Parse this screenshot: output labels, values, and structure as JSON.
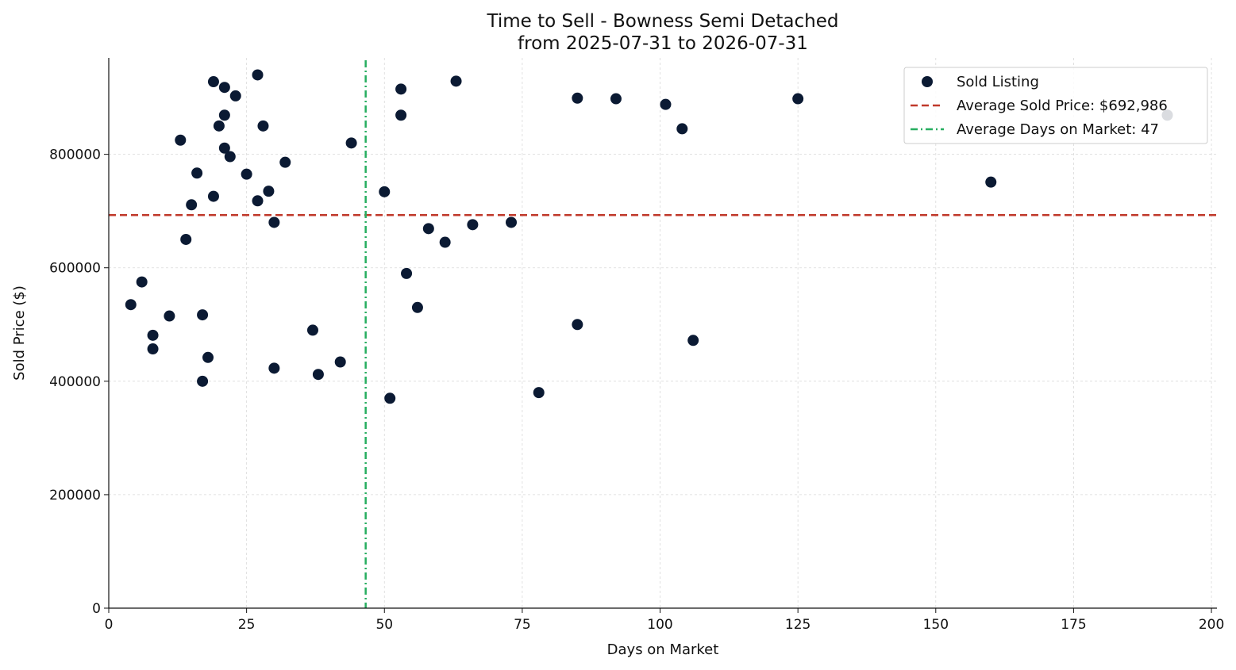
{
  "chart_data": {
    "type": "scatter",
    "title": "Time to Sell - Bowness Semi Detached",
    "subtitle": "from 2025-07-31 to 2026-07-31",
    "xlabel": "Days on Market",
    "ylabel": "Sold Price ($)",
    "xlim": [
      0,
      201
    ],
    "ylim": [
      0,
      970000
    ],
    "xticks": [
      0,
      25,
      50,
      75,
      100,
      125,
      150,
      175,
      200
    ],
    "yticks": [
      0,
      200000,
      400000,
      600000,
      800000
    ],
    "grid": true,
    "legend_position": "top-right",
    "colors": {
      "points": "#0b1a33",
      "avg_price_line": "#c0392b",
      "avg_days_line": "#27ae60",
      "grid": "#d9d9d9",
      "axis": "#111111"
    },
    "series": [
      {
        "name": "Sold Listing",
        "points": [
          [
            4,
            535000
          ],
          [
            6,
            575000
          ],
          [
            8,
            481000
          ],
          [
            8,
            457000
          ],
          [
            11,
            515000
          ],
          [
            13,
            825000
          ],
          [
            14,
            650000
          ],
          [
            15,
            711000
          ],
          [
            16,
            767000
          ],
          [
            17,
            517000
          ],
          [
            17,
            400000
          ],
          [
            18,
            442000
          ],
          [
            19,
            928000
          ],
          [
            19,
            726000
          ],
          [
            20,
            850000
          ],
          [
            21,
            918000
          ],
          [
            21,
            869000
          ],
          [
            21,
            811000
          ],
          [
            22,
            796000
          ],
          [
            23,
            903000
          ],
          [
            25,
            765000
          ],
          [
            27,
            940000
          ],
          [
            27,
            718000
          ],
          [
            28,
            850000
          ],
          [
            29,
            735000
          ],
          [
            30,
            680000
          ],
          [
            30,
            423000
          ],
          [
            32,
            786000
          ],
          [
            37,
            490000
          ],
          [
            38,
            412000
          ],
          [
            42,
            434000
          ],
          [
            44,
            820000
          ],
          [
            50,
            734000
          ],
          [
            51,
            370000
          ],
          [
            53,
            915000
          ],
          [
            53,
            869000
          ],
          [
            54,
            590000
          ],
          [
            56,
            530000
          ],
          [
            58,
            669000
          ],
          [
            61,
            645000
          ],
          [
            63,
            929000
          ],
          [
            66,
            676000
          ],
          [
            73,
            680000
          ],
          [
            78,
            380000
          ],
          [
            85,
            899000
          ],
          [
            85,
            500000
          ],
          [
            92,
            898000
          ],
          [
            101,
            888000
          ],
          [
            104,
            845000
          ],
          [
            106,
            472000
          ],
          [
            125,
            898000
          ],
          [
            160,
            751000
          ],
          [
            192,
            869000
          ]
        ]
      }
    ],
    "reference_lines": [
      {
        "orientation": "horizontal",
        "value": 692986,
        "label": "Average Sold Price: $692,986",
        "style": "dashed"
      },
      {
        "orientation": "vertical",
        "value": 46.6,
        "label": "Average Days on Market: 47",
        "style": "dash-dot"
      }
    ]
  }
}
